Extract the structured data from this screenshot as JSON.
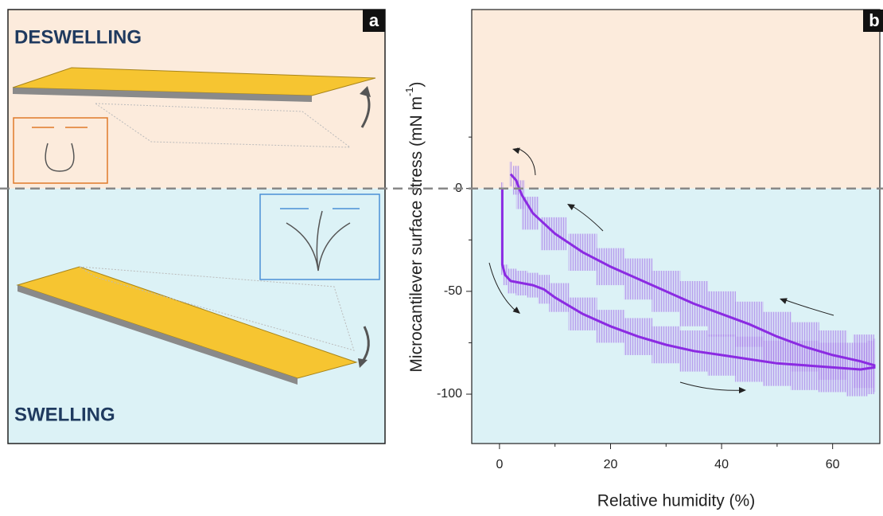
{
  "panel_a": {
    "label": "a",
    "top_text": "DESWELLING",
    "bottom_text": "SWELLING"
  },
  "chart_data": {
    "type": "line",
    "label": "b",
    "xlabel": "Relative humidity (%)",
    "ylabel": "Microcantilever surface stress (mN m",
    "ylabel_sup": "-1",
    "ylabel_end": ")",
    "x": [
      0.5,
      0.5,
      1,
      2,
      4,
      6,
      8,
      10,
      15,
      20,
      25,
      30,
      35,
      40,
      45,
      50,
      55,
      60,
      65,
      67.5,
      67.5,
      65,
      60,
      55,
      50,
      45,
      40,
      35,
      30,
      25,
      20,
      15,
      10,
      6,
      4,
      3,
      2
    ],
    "values": [
      0,
      -37,
      -42,
      -45,
      -46,
      -47,
      -49,
      -53,
      -61,
      -67,
      -72,
      -76,
      -79,
      -81,
      -83,
      -85,
      -86,
      -87,
      -88,
      -87,
      -86,
      -84,
      -81,
      -77,
      -72,
      -66,
      -61,
      -56,
      -50,
      -44,
      -38,
      -31,
      -22,
      -12,
      -3,
      4,
      7
    ],
    "errors": [
      3,
      5,
      5,
      6,
      6,
      6,
      7,
      7,
      8,
      8,
      9,
      9,
      10,
      10,
      11,
      11,
      12,
      12,
      13,
      13,
      13,
      13,
      12,
      12,
      12,
      11,
      11,
      11,
      10,
      10,
      9,
      9,
      8,
      8,
      7,
      7,
      6
    ],
    "color": "#8b2be2",
    "xlim": [
      -5,
      68.5
    ],
    "ylim": [
      -124,
      87
    ],
    "xticks": [
      0,
      20,
      40,
      60
    ],
    "yticks": [
      -100,
      -50,
      0
    ],
    "xminor": [
      10,
      30,
      50
    ],
    "yminor": [
      -75,
      -25,
      25
    ]
  }
}
